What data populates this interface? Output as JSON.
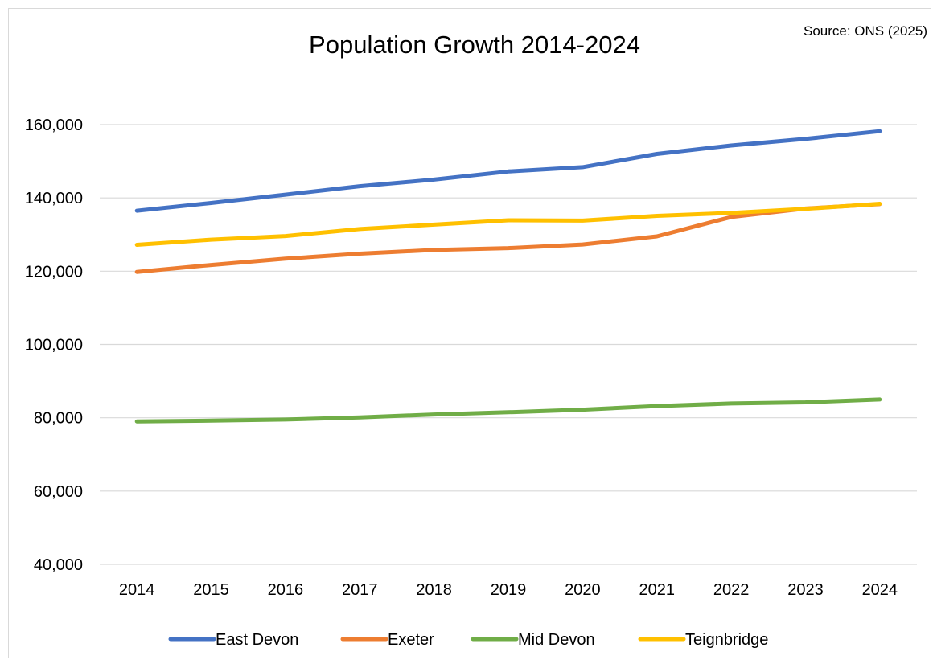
{
  "chart_data": {
    "type": "line",
    "title": "Population Growth 2014-2024",
    "source": "Source: ONS (2025)",
    "xlabel": "",
    "ylabel": "",
    "categories": [
      "2014",
      "2015",
      "2016",
      "2017",
      "2018",
      "2019",
      "2020",
      "2021",
      "2022",
      "2023",
      "2024"
    ],
    "ylim": [
      40000,
      160000
    ],
    "yticks": [
      40000,
      60000,
      80000,
      100000,
      120000,
      140000,
      160000
    ],
    "ytick_labels": [
      "40,000",
      "60,000",
      "80,000",
      "100,000",
      "120,000",
      "140,000",
      "160,000"
    ],
    "grid": true,
    "legend_position": "bottom",
    "series": [
      {
        "name": "East Devon",
        "color": "#4472c4",
        "values": [
          136500,
          138600,
          140900,
          143200,
          145000,
          147200,
          148400,
          152000,
          154300,
          156100,
          158200
        ]
      },
      {
        "name": "Exeter",
        "color": "#ed7d31",
        "values": [
          119800,
          121700,
          123400,
          124800,
          125800,
          126300,
          127300,
          129500,
          134800,
          137100,
          138300
        ]
      },
      {
        "name": "Mid Devon",
        "color": "#70ad47",
        "values": [
          79000,
          79200,
          79500,
          80100,
          80900,
          81500,
          82200,
          83200,
          83900,
          84200,
          85000
        ]
      },
      {
        "name": "Teignbridge",
        "color": "#ffc000",
        "values": [
          127200,
          128600,
          129600,
          131500,
          132700,
          133900,
          133800,
          135100,
          135900,
          137000,
          138400
        ]
      }
    ]
  }
}
